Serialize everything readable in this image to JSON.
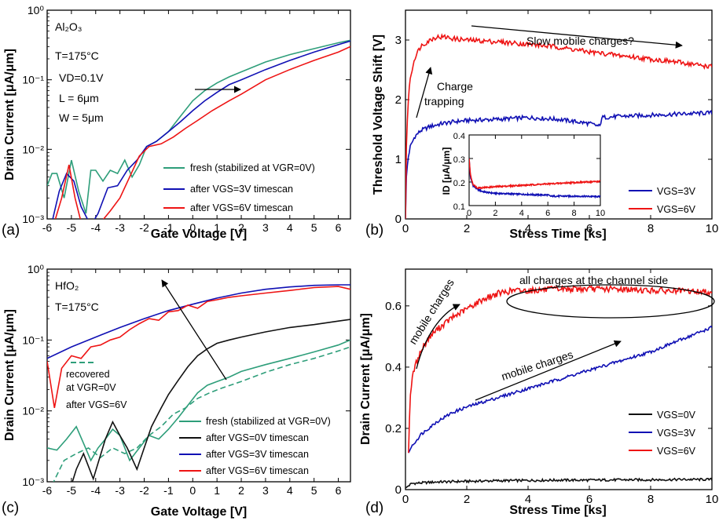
{
  "colors": {
    "fresh": "#2e9e7a",
    "v0": "#111111",
    "v3": "#1010b4",
    "v6": "#ee1414"
  },
  "chart_data": [
    {
      "id": "a",
      "type": "line",
      "scale": "semilogy",
      "panel_label": "(a)",
      "xlabel": "Gate Voltage [V]",
      "ylabel": "Drain Current [μA/μm]",
      "xlim": [
        -6,
        6.5
      ],
      "ylim": [
        0.001,
        1
      ],
      "xticks": [
        "-6",
        "-5",
        "-4",
        "-3",
        "-2",
        "-1",
        "0",
        "1",
        "2",
        "3",
        "4",
        "5",
        "6"
      ],
      "yticks": [
        "10⁻³",
        "10⁻²",
        "10⁻¹",
        "10⁰"
      ],
      "annotations": {
        "material": "Al₂O₃",
        "temp": "T=175°C",
        "vd": "VD=0.1V",
        "l": "L = 6μm",
        "w": "W = 5μm"
      },
      "legend": [
        "fresh (stabilized at VGR=0V)",
        "after VGS=3V timescan",
        "after VGS=6V timescan"
      ],
      "series": [
        {
          "name": "fresh (stabilized at VGR=0V)",
          "color": "#2e9e7a",
          "x": [
            -6,
            -5.8,
            -5.6,
            -5.3,
            -5,
            -4.7,
            -4.4,
            -4.2,
            -4,
            -3.7,
            -3.4,
            -3.1,
            -2.8,
            -2.5,
            -2.2,
            -1.9,
            -1.5,
            -1,
            -0.5,
            0,
            0.5,
            1,
            1.5,
            2,
            3,
            4,
            5,
            6,
            6.5
          ],
          "y": [
            0.003,
            0.0045,
            0.0045,
            0.002,
            0.007,
            0.0025,
            0.0012,
            0.005,
            0.005,
            0.0035,
            0.005,
            0.0045,
            0.007,
            0.004,
            0.006,
            0.011,
            0.013,
            0.018,
            0.03,
            0.05,
            0.07,
            0.09,
            0.11,
            0.13,
            0.18,
            0.23,
            0.28,
            0.34,
            0.37
          ]
        },
        {
          "name": "after VGS=3V timescan",
          "color": "#1010b4",
          "x": [
            -5.8,
            -5.5,
            -5.2,
            -4.9,
            -4.6,
            -4.2,
            -3.9,
            -3.5,
            -3.1,
            -2.7,
            -2.3,
            -1.9,
            -1.5,
            -1,
            -0.5,
            0,
            0.5,
            1,
            1.5,
            2,
            3,
            4,
            5,
            6,
            6.5
          ],
          "y": [
            0.0009,
            0.0025,
            0.0045,
            0.0035,
            0.0015,
            0.0008,
            0.0012,
            0.0028,
            0.003,
            0.005,
            0.007,
            0.011,
            0.013,
            0.018,
            0.025,
            0.036,
            0.05,
            0.066,
            0.085,
            0.1,
            0.14,
            0.19,
            0.25,
            0.32,
            0.36
          ]
        },
        {
          "name": "after VGS=6V timescan",
          "color": "#ee1414",
          "x": [
            -5.7,
            -5.4,
            -5.1,
            -4.85,
            -4.6,
            -4.3,
            -3.9,
            -3.4,
            -3.0,
            -2.6,
            -2.2,
            -1.8,
            -1.3,
            -0.8,
            -0.3,
            0.2,
            0.8,
            1.5,
            2,
            3,
            4,
            5,
            6,
            6.5
          ],
          "y": [
            0.0009,
            0.002,
            0.006,
            0.002,
            0.0009,
            0.0007,
            0.0008,
            0.0013,
            0.002,
            0.004,
            0.008,
            0.011,
            0.012,
            0.015,
            0.02,
            0.026,
            0.036,
            0.05,
            0.062,
            0.1,
            0.14,
            0.19,
            0.25,
            0.3
          ]
        }
      ]
    },
    {
      "id": "b",
      "type": "line",
      "panel_label": "(b)",
      "xlabel": "Stress Time [ks]",
      "ylabel": "Threshold Voltage Shift [V]",
      "xlim": [
        0,
        10
      ],
      "ylim": [
        0,
        3.5
      ],
      "xticks": [
        "0",
        "2",
        "4",
        "6",
        "8",
        "10"
      ],
      "yticks": [
        "0",
        "1",
        "2",
        "3"
      ],
      "annotations": {
        "charge_trapping": "Charge trapping",
        "slow_mobile": "Slow mobile charges?"
      },
      "legend": [
        "VGS=3V",
        "VGS=6V"
      ],
      "series": [
        {
          "name": "VGS=3V",
          "color": "#1010b4",
          "x": [
            0,
            0.03,
            0.08,
            0.15,
            0.3,
            0.5,
            0.8,
            1.2,
            1.6,
            2,
            3,
            4,
            5,
            6,
            6.35,
            6.4,
            7,
            8,
            9,
            10
          ],
          "y": [
            0,
            0.7,
            1.0,
            1.2,
            1.38,
            1.48,
            1.55,
            1.6,
            1.63,
            1.65,
            1.67,
            1.7,
            1.67,
            1.6,
            1.55,
            1.7,
            1.72,
            1.74,
            1.76,
            1.78
          ]
        },
        {
          "name": "VGS=6V",
          "color": "#ee1414",
          "x": [
            0,
            0.03,
            0.08,
            0.15,
            0.3,
            0.5,
            0.8,
            1.0,
            1.3,
            1.6,
            2,
            3,
            4,
            5,
            6,
            7,
            8,
            9,
            10
          ],
          "y": [
            0,
            1.2,
            1.9,
            2.35,
            2.7,
            2.9,
            3.0,
            3.05,
            3.05,
            3.02,
            3.0,
            2.97,
            2.93,
            2.88,
            2.8,
            2.74,
            2.68,
            2.62,
            2.55
          ]
        }
      ],
      "inset": {
        "ylabel": "ID [μA/μm]",
        "xlim": [
          0,
          10
        ],
        "ylim": [
          0.1,
          0.4
        ],
        "xticks": [
          "0",
          "2",
          "4",
          "6",
          "8",
          "10"
        ],
        "yticks": [
          "0.1",
          "0.2",
          "0.3",
          "0.4"
        ],
        "series": [
          {
            "name": "VGS=3V",
            "color": "#1010b4",
            "x": [
              0,
              0.1,
              0.3,
              0.6,
              1,
              1.5,
              2,
              3,
              4,
              5,
              6,
              6.2,
              7,
              8,
              9,
              10
            ],
            "y": [
              0.3,
              0.22,
              0.185,
              0.17,
              0.16,
              0.155,
              0.152,
              0.15,
              0.148,
              0.146,
              0.145,
              0.14,
              0.14,
              0.14,
              0.139,
              0.138
            ]
          },
          {
            "name": "VGS=6V",
            "color": "#ee1414",
            "x": [
              0,
              0.1,
              0.3,
              0.6,
              1,
              1.5,
              2,
              3,
              4,
              5,
              6,
              7,
              8,
              9,
              10
            ],
            "y": [
              0.3,
              0.23,
              0.19,
              0.176,
              0.176,
              0.178,
              0.18,
              0.183,
              0.186,
              0.189,
              0.192,
              0.195,
              0.198,
              0.2,
              0.203
            ]
          }
        ]
      }
    },
    {
      "id": "c",
      "type": "line",
      "scale": "semilogy",
      "panel_label": "(c)",
      "xlabel": "Gate Voltage [V]",
      "ylabel": "Drain Current [μA/μm]",
      "xlim": [
        -6,
        6.5
      ],
      "ylim": [
        0.001,
        1
      ],
      "xticks": [
        "-6",
        "-5",
        "-4",
        "-3",
        "-2",
        "-1",
        "0",
        "1",
        "2",
        "3",
        "4",
        "5",
        "6"
      ],
      "yticks": [
        "10⁻³",
        "10⁻²",
        "10⁻¹",
        "10⁰"
      ],
      "annotations": {
        "material": "HfO₂",
        "temp": "T=175°C",
        "recovered": [
          "recovered",
          "at VGR=0V",
          "after VGS=6V"
        ]
      },
      "legend": [
        "fresh (stabilized at VGR=0V)",
        "after VGS=0V timescan",
        "after VGS=3V timescan",
        "after VGS=6V timescan"
      ],
      "series": [
        {
          "name": "fresh (stabilized at VGR=0V)",
          "color": "#2e9e7a",
          "x": [
            -6,
            -5.6,
            -5.2,
            -4.8,
            -4.5,
            -4.2,
            -3.9,
            -3.6,
            -3.3,
            -3.0,
            -2.6,
            -2.2,
            -1.8,
            -1.4,
            -1.0,
            -0.6,
            -0.2,
            0.2,
            0.6,
            1,
            1.5,
            2,
            3,
            4,
            5,
            6,
            6.5
          ],
          "y": [
            0.003,
            0.0028,
            0.004,
            0.006,
            0.0035,
            0.002,
            0.003,
            0.004,
            0.0055,
            0.0045,
            0.002,
            0.003,
            0.0045,
            0.004,
            0.0055,
            0.008,
            0.012,
            0.018,
            0.023,
            0.026,
            0.03,
            0.036,
            0.045,
            0.055,
            0.068,
            0.085,
            0.1
          ]
        },
        {
          "name": "recovered",
          "color": "#2e9e7a",
          "dashed": true,
          "x": [
            -5.8,
            -5.3,
            -4.8,
            -4.3,
            -3.8,
            -3.3,
            -2.8,
            -2.3,
            -1.8,
            -1.3,
            -0.8,
            -0.3,
            0.2,
            0.7,
            1.2,
            2,
            3,
            4,
            5,
            6,
            6.5
          ],
          "y": [
            0.0009,
            0.002,
            0.0025,
            0.003,
            0.0022,
            0.003,
            0.0025,
            0.003,
            0.0045,
            0.006,
            0.009,
            0.011,
            0.015,
            0.018,
            0.021,
            0.026,
            0.035,
            0.045,
            0.055,
            0.07,
            0.08
          ]
        },
        {
          "name": "after VGS=0V timescan",
          "color": "#111111",
          "x": [
            -5,
            -4.8,
            -4.5,
            -4.1,
            -3.6,
            -3.3,
            -3.0,
            -2.7,
            -2.3,
            -2.0,
            -1.7,
            -1.3,
            -1.0,
            -0.6,
            -0.2,
            0.2,
            0.6,
            1,
            1.5,
            2,
            3,
            4,
            5,
            6,
            6.5
          ],
          "y": [
            0.0009,
            0.0015,
            0.0025,
            0.0011,
            0.004,
            0.007,
            0.0045,
            0.003,
            0.0015,
            0.003,
            0.006,
            0.011,
            0.017,
            0.027,
            0.042,
            0.06,
            0.075,
            0.09,
            0.1,
            0.11,
            0.13,
            0.15,
            0.165,
            0.185,
            0.195
          ]
        },
        {
          "name": "after VGS=3V timescan",
          "color": "#1010b4",
          "x": [
            -6,
            -5,
            -4,
            -3,
            -2,
            -1,
            0,
            1,
            2,
            3,
            4,
            5,
            6,
            6.5
          ],
          "y": [
            0.055,
            0.08,
            0.11,
            0.15,
            0.2,
            0.26,
            0.32,
            0.39,
            0.46,
            0.52,
            0.56,
            0.59,
            0.6,
            0.6
          ]
        },
        {
          "name": "after VGS=6V timescan",
          "color": "#ee1414",
          "x": [
            -6,
            -5.7,
            -5.4,
            -5.0,
            -4.6,
            -4.2,
            -3.8,
            -3.4,
            -3.0,
            -2.6,
            -2.2,
            -1.8,
            -1.4,
            -1.0,
            -0.6,
            -0.2,
            0.2,
            0.6,
            1.0,
            1.5,
            2,
            3,
            4,
            5,
            6,
            6.5
          ],
          "y": [
            0.05,
            0.011,
            0.04,
            0.06,
            0.055,
            0.08,
            0.085,
            0.1,
            0.11,
            0.14,
            0.17,
            0.2,
            0.19,
            0.25,
            0.26,
            0.31,
            0.28,
            0.35,
            0.37,
            0.4,
            0.42,
            0.46,
            0.5,
            0.55,
            0.57,
            0.52
          ]
        }
      ]
    },
    {
      "id": "d",
      "type": "line",
      "panel_label": "(d)",
      "xlabel": "Stress Time [ks]",
      "ylabel": "Drain Current [μA/μm]",
      "xlim": [
        0,
        10
      ],
      "ylim": [
        0,
        0.72
      ],
      "xticks": [
        "0",
        "2",
        "4",
        "6",
        "8",
        "10"
      ],
      "yticks": [
        "0",
        "0.2",
        "0.4",
        "0.6"
      ],
      "annotations": {
        "mobile_red": "mobile charges",
        "mobile_blue": "mobile charges",
        "channel_side": "all charges at the channel side"
      },
      "legend": [
        "VGS=0V",
        "VGS=3V",
        "VGS=6V"
      ],
      "series": [
        {
          "name": "VGS=0V",
          "color": "#111111",
          "x": [
            0,
            0.2,
            1,
            2,
            3,
            4,
            5,
            6,
            7,
            8,
            9,
            10
          ],
          "y": [
            0.005,
            0.02,
            0.025,
            0.027,
            0.029,
            0.03,
            0.031,
            0.031,
            0.032,
            0.032,
            0.033,
            0.033
          ]
        },
        {
          "name": "VGS=3V",
          "color": "#1010b4",
          "x": [
            0.1,
            0.2,
            0.5,
            1,
            1.5,
            2,
            3,
            4,
            5,
            6,
            7,
            8,
            9,
            10
          ],
          "y": [
            0.12,
            0.14,
            0.18,
            0.22,
            0.25,
            0.27,
            0.3,
            0.33,
            0.36,
            0.39,
            0.42,
            0.45,
            0.49,
            0.53
          ]
        },
        {
          "name": "VGS=6V",
          "color": "#ee1414",
          "x": [
            0.1,
            0.15,
            0.25,
            0.4,
            0.6,
            0.8,
            1,
            1.5,
            2,
            2.5,
            3,
            3.5,
            4,
            5,
            6,
            7,
            8,
            9,
            10
          ],
          "y": [
            0.12,
            0.3,
            0.38,
            0.43,
            0.47,
            0.5,
            0.52,
            0.56,
            0.59,
            0.62,
            0.64,
            0.65,
            0.65,
            0.655,
            0.655,
            0.655,
            0.65,
            0.648,
            0.645
          ]
        }
      ]
    }
  ]
}
